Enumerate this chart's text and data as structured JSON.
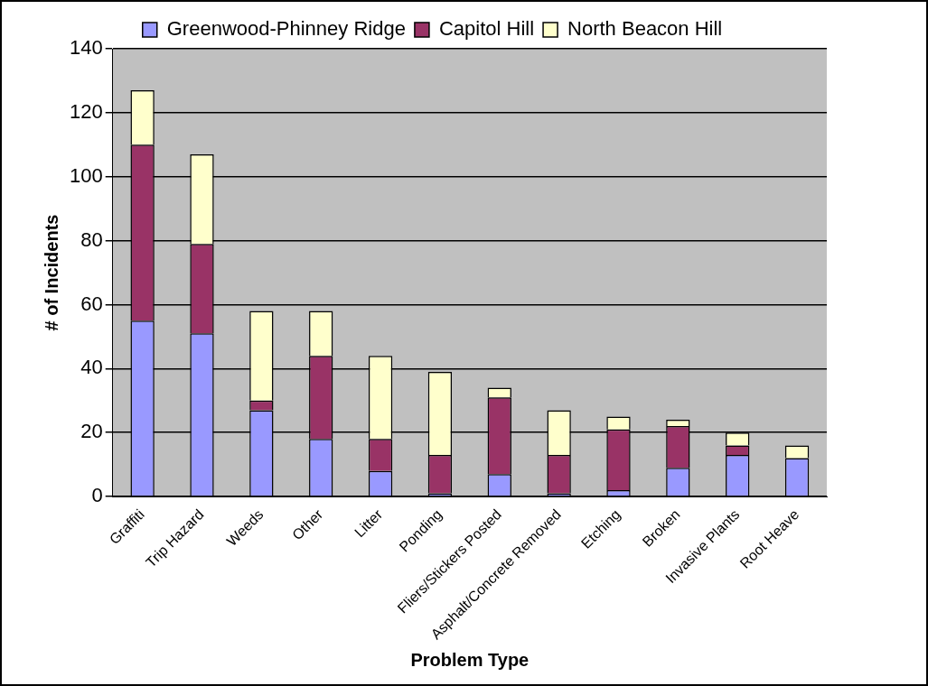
{
  "chart_data": {
    "type": "bar",
    "stacked": true,
    "xlabel": "Problem Type",
    "ylabel": "# of Incidents",
    "categories": [
      "Graffiti",
      "Trip Hazard",
      "Weeds",
      "Other",
      "Litter",
      "Ponding",
      "Fliers/Stickers Posted",
      "Asphalt/Concrete Removed",
      "Etching",
      "Broken",
      "Invasive Plants",
      "Root Heave"
    ],
    "series": [
      {
        "name": "Greenwood-Phinney Ridge",
        "color": "#9999ff",
        "values": [
          55,
          51,
          27,
          18,
          8,
          1,
          7,
          1,
          2,
          9,
          13,
          12
        ]
      },
      {
        "name": "Capitol Hill",
        "color": "#993366",
        "values": [
          55,
          28,
          3,
          26,
          10,
          12,
          24,
          12,
          19,
          13,
          3,
          0
        ]
      },
      {
        "name": "North Beacon Hill",
        "color": "#ffffcc",
        "values": [
          17,
          28,
          28,
          14,
          26,
          26,
          3,
          14,
          4,
          2,
          4,
          4
        ]
      }
    ],
    "ylim": [
      0,
      140
    ],
    "yticks": [
      0,
      20,
      40,
      60,
      80,
      100,
      120,
      140
    ],
    "grid": "y",
    "legend": "top"
  }
}
